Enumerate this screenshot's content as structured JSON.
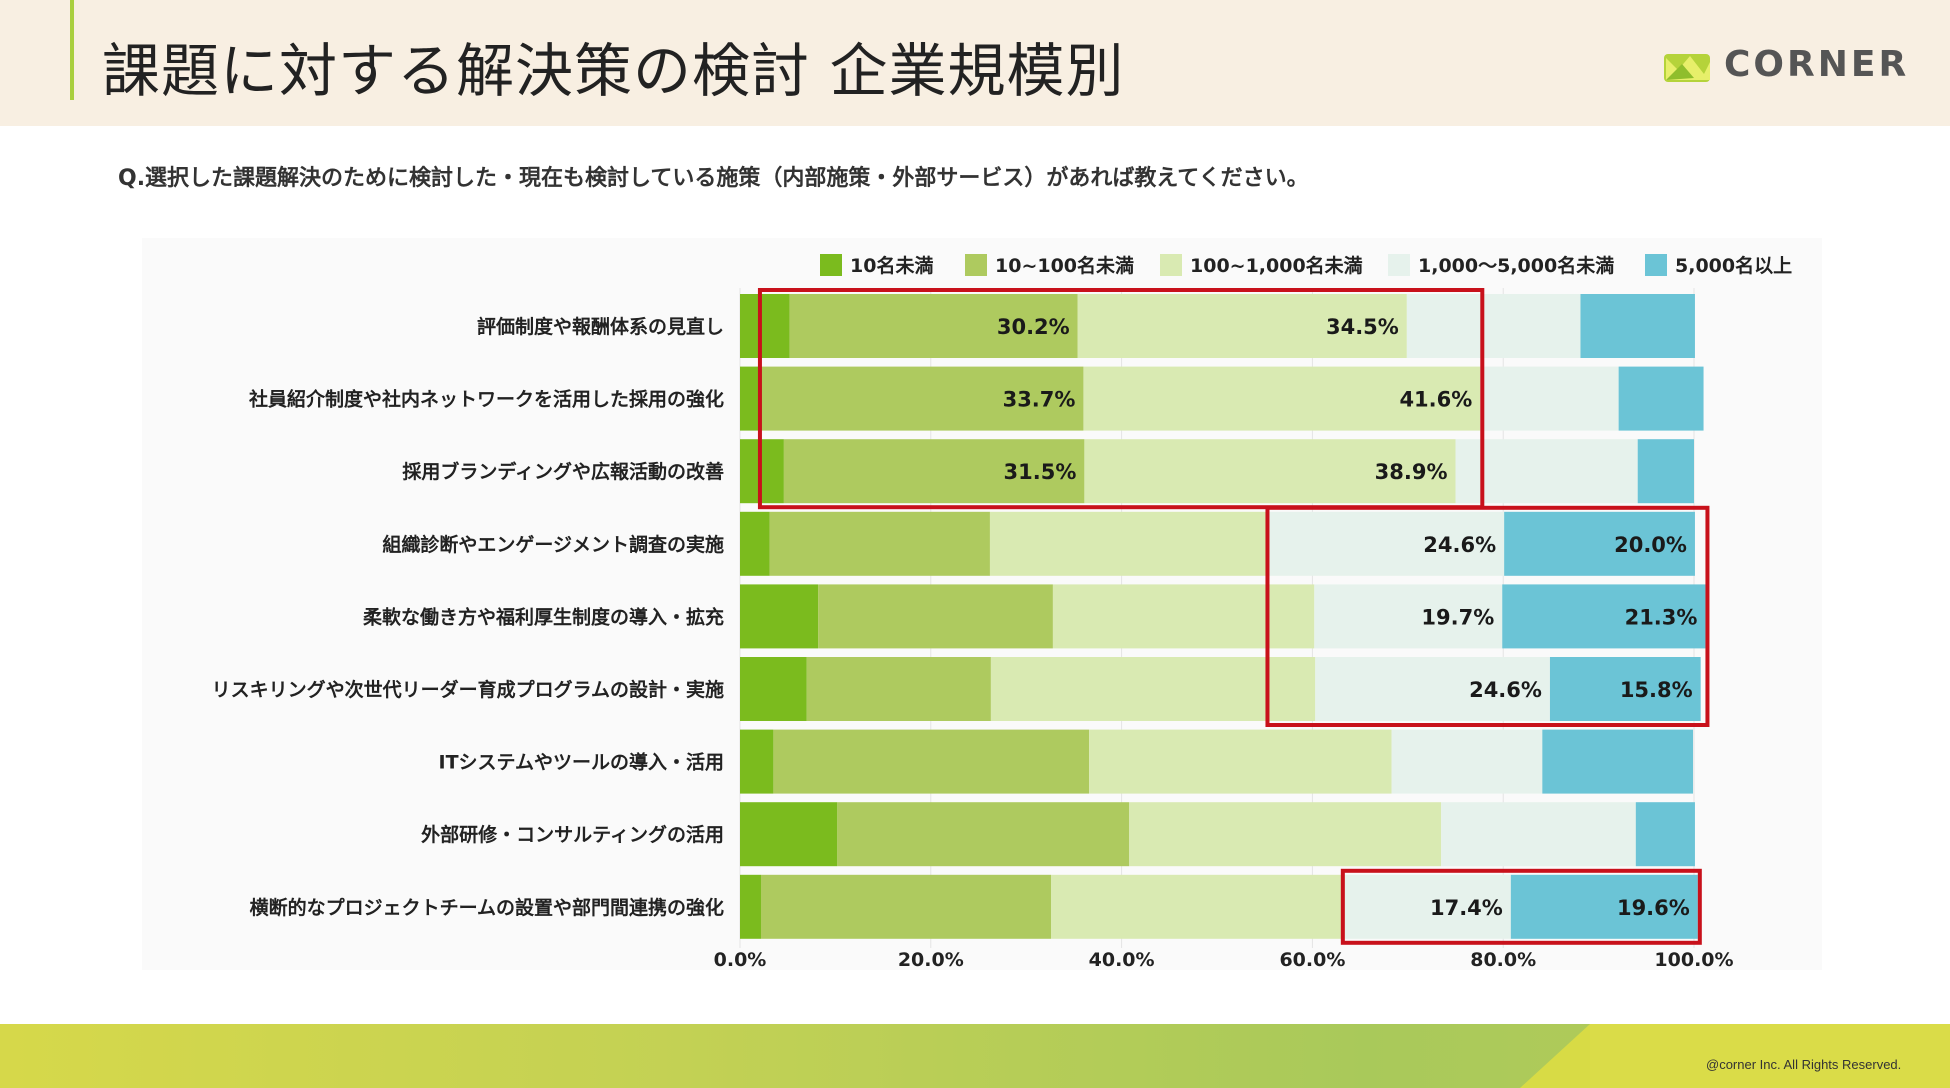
{
  "header": {
    "title": "課題に対する解決策の検討 企業規模別",
    "logo_text": "CORNER"
  },
  "question": "Q.選択した課題解決のために検討した・現在も検討している施策（内部施策・外部サービス）があれば教えてください。",
  "footer": {
    "copyright": "@corner Inc. All Rights Reserved."
  },
  "colors": {
    "s1": "#7bbb1e",
    "s2": "#aeca5f",
    "s3": "#d9eab2",
    "s4": "#e6f2ec",
    "s5": "#6bc4d6",
    "highlight": "#c8111b"
  },
  "chart_data": {
    "type": "bar",
    "orientation": "horizontal",
    "stacked": true,
    "xlim": [
      0,
      100
    ],
    "x_ticks": [
      "0.0%",
      "20.0%",
      "40.0%",
      "60.0%",
      "80.0%",
      "100.0%"
    ],
    "legend_position": "top",
    "categories": [
      "評価制度や報酬体系の見直し",
      "社員紹介制度や社内ネットワークを活用した採用の強化",
      "採用ブランディングや広報活動の改善",
      "組織診断やエンゲージメント調査の実施",
      "柔軟な働き方や福利厚生制度の導入・拡充",
      "リスキリングや次世代リーダー育成プログラムの設計・実施",
      "ITシステムやツールの導入・活用",
      "外部研修・コンサルティングの活用",
      "横断的なプロジェクトチームの設置や部門間連携の強化"
    ],
    "series": [
      {
        "name": "10名未満",
        "values": [
          5.2,
          2.3,
          4.6,
          3.1,
          8.2,
          7.0,
          3.5,
          10.2,
          2.2
        ]
      },
      {
        "name": "10~100名未満",
        "values": [
          30.2,
          33.7,
          31.5,
          23.1,
          24.6,
          19.3,
          33.1,
          30.6,
          30.4
        ]
      },
      {
        "name": "100~1,000名未満",
        "values": [
          34.5,
          41.6,
          38.9,
          29.3,
          27.4,
          34.0,
          31.7,
          32.7,
          30.8
        ]
      },
      {
        "name": "1,000〜5,000名未満",
        "values": [
          18.2,
          14.5,
          19.1,
          24.6,
          19.7,
          24.6,
          15.8,
          20.4,
          17.4
        ]
      },
      {
        "name": "5,000名以上",
        "values": [
          12.0,
          8.9,
          5.9,
          20.0,
          21.3,
          15.8,
          15.8,
          6.2,
          19.6
        ]
      }
    ],
    "data_labels": [
      {
        "row": 0,
        "series": 1,
        "text": "30.2%"
      },
      {
        "row": 0,
        "series": 2,
        "text": "34.5%"
      },
      {
        "row": 1,
        "series": 1,
        "text": "33.7%"
      },
      {
        "row": 1,
        "series": 2,
        "text": "41.6%"
      },
      {
        "row": 2,
        "series": 1,
        "text": "31.5%"
      },
      {
        "row": 2,
        "series": 2,
        "text": "38.9%"
      },
      {
        "row": 3,
        "series": 3,
        "text": "24.6%"
      },
      {
        "row": 3,
        "series": 4,
        "text": "20.0%"
      },
      {
        "row": 4,
        "series": 3,
        "text": "19.7%"
      },
      {
        "row": 4,
        "series": 4,
        "text": "21.3%"
      },
      {
        "row": 5,
        "series": 3,
        "text": "24.6%"
      },
      {
        "row": 5,
        "series": 4,
        "text": "15.8%"
      },
      {
        "row": 8,
        "series": 3,
        "text": "17.4%"
      },
      {
        "row": 8,
        "series": 4,
        "text": "19.6%"
      }
    ],
    "highlights": [
      {
        "rows": [
          0,
          2
        ],
        "series": [
          1,
          2
        ]
      },
      {
        "rows": [
          3,
          5
        ],
        "series": [
          3,
          4
        ]
      },
      {
        "rows": [
          8,
          8
        ],
        "series": [
          3,
          4
        ]
      }
    ]
  }
}
